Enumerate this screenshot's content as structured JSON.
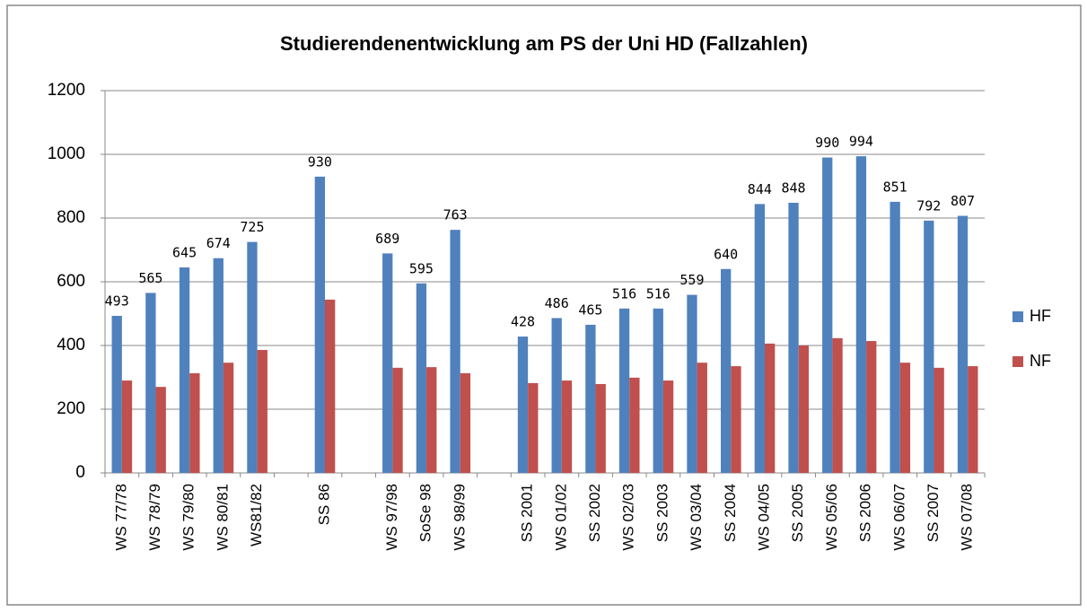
{
  "chart_data": {
    "type": "bar",
    "title": "Studierendenentwicklung am PS der Uni HD (Fallzahlen)",
    "categories": [
      "WS 77/78",
      "WS 78/79",
      "WS 79/80",
      "WS 80/81",
      "WS81/82",
      null,
      "SS 86",
      null,
      "WS 97/98",
      "SoSe 98",
      "WS 98/99",
      null,
      "SS 2001",
      "WS 01/02",
      "SS 2002",
      "WS 02/03",
      "SS 2003",
      "WS 03/04",
      "SS 2004",
      "WS 04/05",
      "SS 2005",
      "WS 05/06",
      "SS 2006",
      "WS 06/07",
      "SS 2007",
      "WS 07/08"
    ],
    "series": [
      {
        "name": "HF",
        "color": "#4f81bd",
        "data_labels": true,
        "values": [
          493,
          565,
          645,
          674,
          725,
          null,
          930,
          null,
          689,
          595,
          763,
          null,
          428,
          486,
          465,
          516,
          516,
          559,
          640,
          844,
          848,
          990,
          994,
          851,
          792,
          807
        ]
      },
      {
        "name": "NF",
        "color": "#c0504d",
        "data_labels": false,
        "values": [
          290,
          270,
          313,
          346,
          386,
          null,
          544,
          null,
          330,
          332,
          313,
          null,
          282,
          290,
          279,
          299,
          290,
          346,
          335,
          406,
          400,
          423,
          414,
          346,
          330,
          335
        ]
      }
    ],
    "ylim": [
      0,
      1200
    ],
    "yticks": [
      0,
      200,
      400,
      600,
      800,
      1000,
      1200
    ],
    "grid": true,
    "legend": "right"
  }
}
